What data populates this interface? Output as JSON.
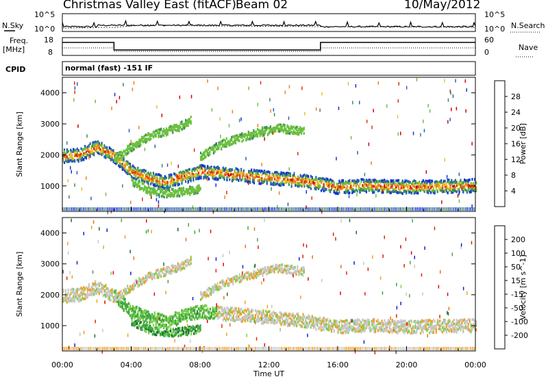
{
  "header": {
    "title": "Christmas Valley East (fitACF)",
    "beam": "Beam 02",
    "date": "10/May/2012"
  },
  "noise_panel": {
    "left_label": "N.Sky",
    "right_label": "N.Search",
    "left_ticks": [
      "10^5",
      "10^0"
    ],
    "right_ticks": [
      "10^5",
      "10^0"
    ]
  },
  "freq_panel": {
    "left_label_line1": "Freq.",
    "left_label_line2": "[MHz]",
    "right_label": "Nave",
    "left_ticks": [
      "18",
      "8"
    ],
    "right_ticks": [
      "60",
      "0"
    ]
  },
  "cpid_panel": {
    "label": "CPID",
    "text": "normal (fast) -151 IF"
  },
  "chart_data": [
    {
      "type": "heatmap",
      "panel": "power",
      "ylabel": "Slant Range [km]",
      "ylim": [
        180,
        4500
      ],
      "y_ticks": [
        "1000",
        "2000",
        "3000",
        "4000"
      ],
      "colorbar_label": "Power [dB]",
      "colorbar_ticks": [
        "4",
        "8",
        "12",
        "16",
        "20",
        "24",
        "28"
      ],
      "colorbar_colors": [
        "#1030e0",
        "#2a5fb0",
        "#3f8a60",
        "#6cc040",
        "#f0c020",
        "#f08020",
        "#e03010",
        "#d00000"
      ],
      "ridges_hours_km": [
        [
          [
            0.0,
            2000
          ],
          [
            1.0,
            2050
          ],
          [
            2.0,
            2300
          ],
          [
            3.0,
            2000
          ],
          [
            4.0,
            1500
          ],
          [
            5.0,
            1300
          ],
          [
            6.0,
            1150
          ],
          [
            7.0,
            1350
          ],
          [
            8.0,
            1500
          ],
          [
            10.0,
            1400
          ],
          [
            12.0,
            1300
          ],
          [
            14.0,
            1200
          ],
          [
            16.0,
            1000
          ],
          [
            17.5,
            1050
          ],
          [
            20.0,
            1000
          ],
          [
            24.0,
            1050
          ]
        ],
        [
          [
            3.0,
            1900
          ],
          [
            4.0,
            2300
          ],
          [
            5.0,
            2650
          ],
          [
            6.0,
            2800
          ],
          [
            7.0,
            3000
          ],
          [
            7.5,
            3200
          ]
        ],
        [
          [
            8.0,
            2000
          ],
          [
            9.5,
            2450
          ],
          [
            11.0,
            2700
          ],
          [
            12.5,
            2900
          ],
          [
            14.0,
            2800
          ]
        ],
        [
          [
            4.0,
            1200
          ],
          [
            5.0,
            900
          ],
          [
            6.0,
            800
          ],
          [
            7.0,
            850
          ],
          [
            8.0,
            950
          ]
        ]
      ]
    },
    {
      "type": "heatmap",
      "panel": "velocity",
      "ylabel": "Slant Range [km]",
      "xlabel": "Time UT",
      "x_ticks": [
        "00:00",
        "04:00",
        "08:00",
        "12:00",
        "16:00",
        "20:00",
        "00:00"
      ],
      "xlim": [
        0,
        24
      ],
      "ylim": [
        180,
        4500
      ],
      "y_ticks": [
        "1000",
        "2000",
        "3000",
        "4000"
      ],
      "colorbar_label": "Velocity [m s^-1]",
      "colorbar_ticks": [
        "200",
        "100",
        "50",
        "15",
        "-15",
        "-50",
        "-100",
        "-200"
      ],
      "colorbar_colors": [
        "#1020d0",
        "#1a6a3a",
        "#40a840",
        "#80d050",
        "#c8c8c8",
        "#f0a020",
        "#f07010",
        "#e02010",
        "#e80000"
      ]
    }
  ]
}
